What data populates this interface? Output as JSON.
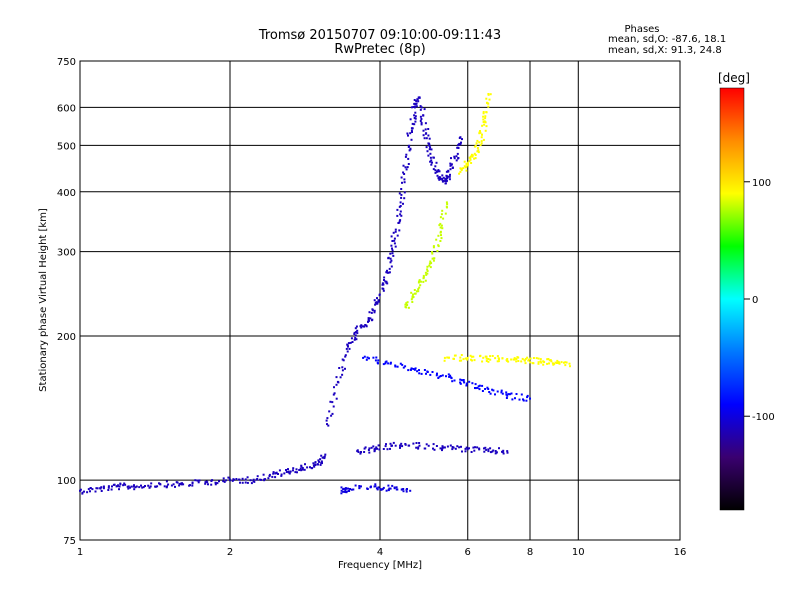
{
  "chart_data": {
    "type": "scatter",
    "title": "Tromsø 20150707 09:10:00-09:11:43",
    "subtitle": "RwPretec (8p)",
    "xlabel": "Frequency [MHz]",
    "ylabel": "Stationary phase Virtual Height [km]",
    "x_scale": "log",
    "y_scale": "log",
    "xlim": [
      1,
      16
    ],
    "ylim": [
      75,
      750
    ],
    "x_ticks": [
      1,
      2,
      4,
      6,
      8,
      10,
      16
    ],
    "x_tick_labels": [
      "1",
      "2",
      "4",
      "6",
      "8",
      "10",
      "16"
    ],
    "y_ticks": [
      75,
      100,
      200,
      300,
      400,
      500,
      600,
      750
    ],
    "y_tick_labels": [
      "75",
      "100",
      "200",
      "300",
      "400",
      "500",
      "600",
      "750"
    ],
    "grid": true,
    "legend": {
      "heading": "Phases",
      "lines": [
        "mean, sd,O: -87.6, 18.1",
        "mean, sd,X:  91.3, 24.8"
      ],
      "placement": "top-right"
    },
    "colorbar": {
      "label": "[deg]",
      "range": [
        -180,
        180
      ],
      "ticks": [
        100,
        0,
        -100
      ],
      "tick_labels": [
        "100",
        "0",
        "-100"
      ],
      "colors": [
        "#000000",
        "#3a0070",
        "#0000ff",
        "#0078ff",
        "#00ffff",
        "#00ff00",
        "#ffff00",
        "#ff8c00",
        "#ff0000"
      ]
    },
    "traces": [
      {
        "name": "",
        "phase": -110,
        "points": [
          [
            1.0,
            95
          ],
          [
            1.1,
            96
          ],
          [
            1.2,
            97
          ],
          [
            1.3,
            97
          ],
          [
            1.45,
            98
          ],
          [
            1.6,
            98
          ],
          [
            1.8,
            99
          ],
          [
            2.0,
            100
          ],
          [
            2.2,
            100
          ],
          [
            2.4,
            102
          ],
          [
            2.6,
            104
          ],
          [
            2.8,
            106
          ],
          [
            3.0,
            108
          ],
          [
            3.1,
            112
          ]
        ]
      },
      {
        "name": "",
        "phase": -110,
        "points": [
          [
            3.15,
            130
          ],
          [
            3.3,
            160
          ],
          [
            3.45,
            190
          ],
          [
            3.6,
            205
          ],
          [
            3.8,
            215
          ],
          [
            3.95,
            235
          ],
          [
            4.1,
            260
          ],
          [
            4.2,
            290
          ],
          [
            4.3,
            330
          ],
          [
            4.4,
            380
          ],
          [
            4.5,
            450
          ],
          [
            4.6,
            530
          ],
          [
            4.7,
            600
          ],
          [
            4.8,
            630
          ]
        ]
      },
      {
        "name": "",
        "phase": -110,
        "points": [
          [
            4.85,
            600
          ],
          [
            4.95,
            530
          ],
          [
            5.05,
            480
          ],
          [
            5.2,
            440
          ],
          [
            5.35,
            420
          ],
          [
            5.5,
            430
          ],
          [
            5.65,
            470
          ],
          [
            5.8,
            520
          ]
        ]
      },
      {
        "name": "",
        "phase": 80,
        "points": [
          [
            4.5,
            230
          ],
          [
            4.7,
            245
          ],
          [
            4.9,
            265
          ],
          [
            5.1,
            290
          ],
          [
            5.3,
            330
          ],
          [
            5.45,
            380
          ]
        ]
      },
      {
        "name": "",
        "phase": 90,
        "points": [
          [
            5.8,
            440
          ],
          [
            6.0,
            460
          ],
          [
            6.2,
            480
          ],
          [
            6.4,
            520
          ],
          [
            6.5,
            570
          ],
          [
            6.6,
            640
          ]
        ]
      },
      {
        "name": "",
        "phase": -110,
        "points": [
          [
            3.6,
            115
          ],
          [
            3.9,
            116
          ],
          [
            4.3,
            118
          ],
          [
            4.8,
            118
          ],
          [
            5.4,
            117
          ],
          [
            6.0,
            116
          ],
          [
            6.6,
            115
          ],
          [
            7.2,
            115
          ]
        ]
      },
      {
        "name": "",
        "phase": -90,
        "points": [
          [
            3.7,
            180
          ],
          [
            4.2,
            175
          ],
          [
            4.7,
            170
          ],
          [
            5.3,
            165
          ],
          [
            5.9,
            160
          ],
          [
            6.5,
            155
          ],
          [
            7.2,
            150
          ],
          [
            8.0,
            148
          ]
        ]
      },
      {
        "name": "",
        "phase": 90,
        "points": [
          [
            5.4,
            180
          ],
          [
            6.0,
            180
          ],
          [
            6.6,
            179
          ],
          [
            7.2,
            179
          ],
          [
            7.8,
            178
          ],
          [
            8.4,
            177
          ],
          [
            9.0,
            176
          ],
          [
            9.6,
            175
          ]
        ]
      },
      {
        "name": "",
        "phase": -100,
        "points": [
          [
            3.35,
            95
          ],
          [
            3.45,
            96
          ],
          [
            3.9,
            97
          ],
          [
            4.2,
            96
          ],
          [
            4.6,
            95
          ]
        ]
      }
    ]
  }
}
